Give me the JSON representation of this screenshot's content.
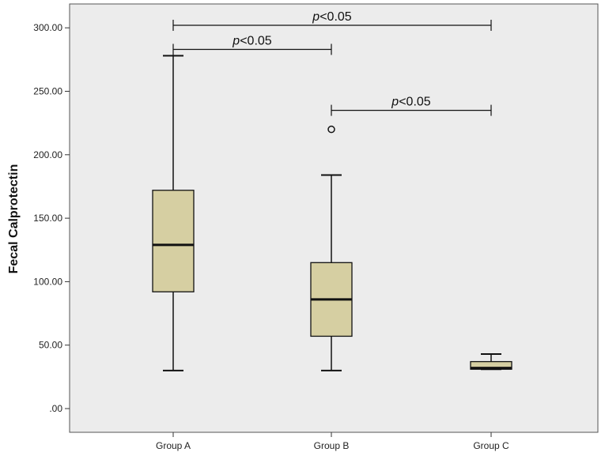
{
  "chart_data": {
    "type": "boxplot",
    "title": "",
    "xlabel": "",
    "ylabel": "Fecal Calprotectin",
    "ylim": [
      -5,
      310
    ],
    "yticks": [
      0,
      50,
      100,
      150,
      200,
      250,
      300
    ],
    "ytick_labels": [
      ".00",
      "50.00",
      "100.00",
      "150.00",
      "200.00",
      "250.00",
      "300.00"
    ],
    "grid": false,
    "categories": [
      "Group A",
      "Group B",
      "Group C"
    ],
    "boxes": [
      {
        "category": "Group A",
        "min": 30,
        "q1": 92,
        "median": 129,
        "q3": 172,
        "max": 278,
        "outliers": []
      },
      {
        "category": "Group B",
        "min": 30,
        "q1": 57,
        "median": 86,
        "q3": 115,
        "max": 184,
        "outliers": [
          220
        ]
      },
      {
        "category": "Group C",
        "min": 31,
        "q1": 31,
        "median": 32,
        "q3": 37,
        "max": 43,
        "outliers": []
      }
    ],
    "annotations": [
      {
        "from": "Group A",
        "to": "Group C",
        "y": 302,
        "prefix": "p",
        "text": "<0.05"
      },
      {
        "from": "Group A",
        "to": "Group B",
        "y": 283,
        "prefix": "p",
        "text": "<0.05"
      },
      {
        "from": "Group B",
        "to": "Group C",
        "y": 235,
        "prefix": "p",
        "text": "<0.05"
      }
    ],
    "colors": {
      "box_fill": "#d6cfa2",
      "plot_bg": "#ececec",
      "line": "#111111"
    }
  }
}
